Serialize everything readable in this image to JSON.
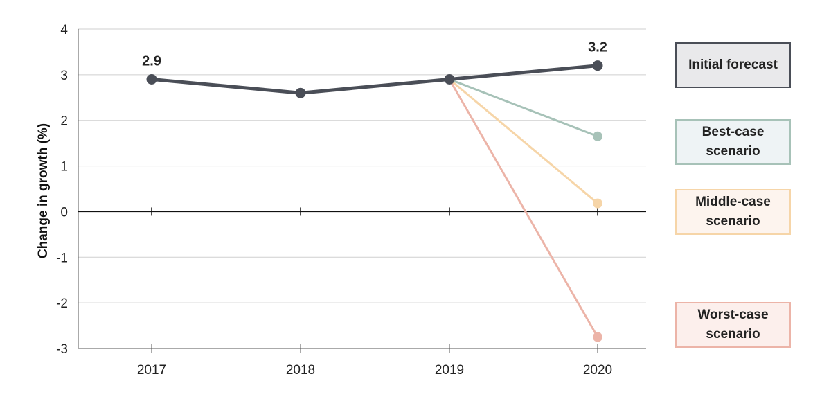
{
  "chart_data": {
    "type": "line",
    "title": "",
    "xlabel": "",
    "ylabel": "Change in growth (%)",
    "categories": [
      "2017",
      "2018",
      "2019",
      "2020"
    ],
    "ylim": [
      -3,
      4
    ],
    "yticks": [
      4,
      3,
      2,
      1,
      0,
      -1,
      -2,
      -3
    ],
    "grid": true,
    "legend_placement": "right",
    "series": [
      {
        "name": "Initial forecast",
        "color": "#4a4e57",
        "legend_bg": "#e9e9eb",
        "values": [
          2.9,
          2.6,
          2.9,
          3.2
        ]
      },
      {
        "name": "Best-case\nscenario",
        "color": "#a7c2b8",
        "legend_bg": "#eef3f5",
        "values": [
          null,
          null,
          2.9,
          1.65
        ]
      },
      {
        "name": "Middle-case\nscenario",
        "color": "#f6d5a8",
        "legend_bg": "#fdf4ee",
        "values": [
          null,
          null,
          2.9,
          0.18
        ]
      },
      {
        "name": "Worst-case\nscenario",
        "color": "#ecb4a8",
        "legend_bg": "#fcefec",
        "values": [
          null,
          null,
          2.9,
          -2.75
        ]
      }
    ],
    "annotations": [
      {
        "text": "2.9",
        "series": 0,
        "index": 0
      },
      {
        "text": "3.2",
        "series": 0,
        "index": 3
      }
    ]
  }
}
